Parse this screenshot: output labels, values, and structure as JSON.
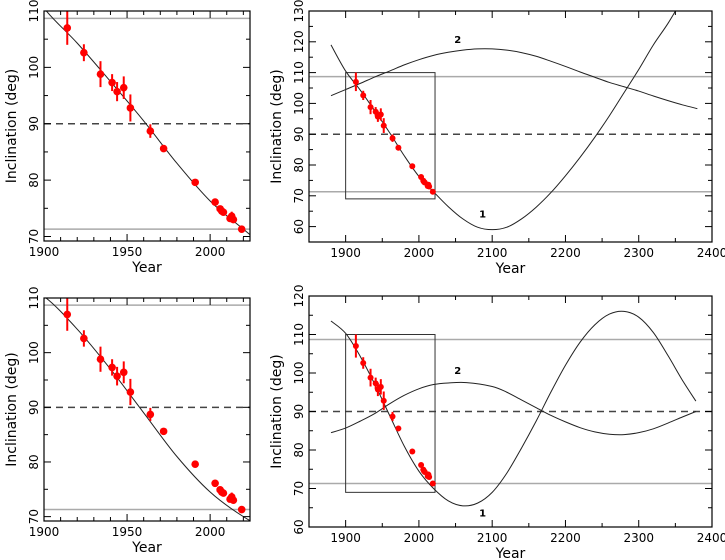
{
  "colors": {
    "points": "#ff0000",
    "curve": "#222222",
    "reference": "#aaaaaa",
    "dashed": "#444444",
    "frame": "#000000"
  },
  "observations": {
    "year": [
      1914,
      1924,
      1934,
      1941,
      1944,
      1948,
      1952,
      1964,
      1972,
      1991,
      2003,
      2006,
      2007,
      2008,
      2012,
      2013,
      2014,
      2019
    ],
    "incl": [
      107.0,
      102.6,
      98.8,
      97.3,
      95.7,
      96.4,
      92.8,
      88.7,
      85.6,
      79.6,
      76.1,
      74.9,
      74.5,
      74.3,
      73.2,
      73.6,
      73.0,
      71.3
    ],
    "err": [
      3.0,
      1.5,
      2.3,
      1.5,
      1.7,
      2.0,
      2.4,
      1.2,
      0.4,
      0.3,
      0.3,
      0.5,
      0.3,
      0.3,
      0.5,
      0.8,
      0.5,
      0.3
    ]
  },
  "model_a": {
    "curve1": {
      "x": [
        1880,
        1900,
        1920,
        1940,
        1960,
        1980,
        2000,
        2020,
        2040,
        2060,
        2080,
        2100,
        2120,
        2140,
        2160,
        2180,
        2200,
        2220,
        2240,
        2260,
        2280,
        2300,
        2320,
        2340,
        2360
      ],
      "y": [
        119,
        110.5,
        104.3,
        97.5,
        90.5,
        83,
        76.3,
        71.3,
        66.5,
        62.5,
        59.8,
        59,
        59.8,
        62.5,
        66.3,
        71,
        76.5,
        82.5,
        89,
        96,
        103.5,
        111,
        119,
        126,
        134
      ]
    },
    "curve2": {
      "x": [
        1880,
        1900,
        1920,
        1940,
        1960,
        1980,
        2000,
        2020,
        2040,
        2060,
        2080,
        2100,
        2120,
        2140,
        2160,
        2180,
        2200,
        2220,
        2240,
        2260,
        2280,
        2300,
        2320,
        2340,
        2360,
        2380
      ],
      "y": [
        102.5,
        104.5,
        106.5,
        108.6,
        110.5,
        112.5,
        114.2,
        115.6,
        116.6,
        117.3,
        117.7,
        117.7,
        117.3,
        116.5,
        115.3,
        113.7,
        112,
        110.2,
        108.5,
        106.8,
        105.4,
        104,
        102.4,
        100.9,
        99.5,
        98.3
      ]
    }
  },
  "model_b": {
    "curve1": {
      "x": [
        1880,
        1900,
        1920,
        1940,
        1960,
        1980,
        2000,
        2020,
        2040,
        2060,
        2080,
        2100,
        2120,
        2140,
        2160,
        2180,
        2200,
        2220,
        2240,
        2260,
        2280,
        2300,
        2320,
        2340,
        2360,
        2378
      ],
      "y": [
        113.5,
        110.3,
        104.3,
        97,
        89,
        81,
        74.5,
        70,
        66.8,
        65.5,
        66.2,
        69,
        74,
        80.5,
        87.5,
        95,
        102,
        108,
        112.5,
        115.3,
        116,
        114.5,
        110.5,
        104.5,
        98,
        92.7
      ]
    },
    "curve2": {
      "x": [
        1880,
        1900,
        1920,
        1940,
        1960,
        1980,
        2000,
        2020,
        2040,
        2065,
        2100,
        2120,
        2140,
        2160,
        2180,
        2200,
        2220,
        2240,
        2260,
        2280,
        2300,
        2320,
        2340,
        2360,
        2378
      ],
      "y": [
        84.5,
        85.7,
        87.5,
        89.5,
        92,
        94.2,
        95.9,
        97,
        97.4,
        97.5,
        96.5,
        95,
        93,
        91,
        89,
        87.3,
        85.8,
        84.7,
        84.1,
        84,
        84.5,
        85.5,
        87,
        88.6,
        90
      ]
    }
  },
  "chart_data": [
    {
      "type": "scatter",
      "panel": "top-left",
      "xlabel": "Year",
      "ylabel": "Inclination  (deg)",
      "xlim": [
        1900,
        2024
      ],
      "ylim": [
        69.2,
        110
      ],
      "xticks": [
        "1900",
        "1950",
        "2000"
      ],
      "yticks": [
        "70",
        "80",
        "90",
        "100",
        "110"
      ],
      "model": "model_a",
      "show_curve2": false,
      "hlines": {
        "reference": [
          108.7,
          71.3
        ],
        "dashed": [
          90
        ]
      }
    },
    {
      "type": "line",
      "panel": "top-right",
      "xlabel": "Year",
      "ylabel": "Inclination  (deg)",
      "xlim": [
        1850,
        2400
      ],
      "ylim": [
        55,
        130
      ],
      "xticks": [
        "1900",
        "2000",
        "2100",
        "2200",
        "2300",
        "2400"
      ],
      "yticks": [
        "60",
        "70",
        "80",
        "90",
        "100",
        "110",
        "120",
        "130"
      ],
      "model": "model_a",
      "show_curve2": true,
      "curve_labels": [
        {
          "text": "1",
          "x": 2087,
          "y": 64.2
        },
        {
          "text": "2",
          "x": 2053,
          "y": 120.9
        }
      ],
      "inset_box": {
        "x": [
          1900,
          2022
        ],
        "y": [
          69,
          110
        ]
      },
      "hlines": {
        "reference": [
          108.7,
          71.3
        ],
        "dashed": [
          90
        ]
      }
    },
    {
      "type": "scatter",
      "panel": "bottom-left",
      "xlabel": "Year",
      "ylabel": "Inclination  (deg)",
      "xlim": [
        1900,
        2024
      ],
      "ylim": [
        69.2,
        110
      ],
      "xticks": [
        "1900",
        "1950",
        "2000"
      ],
      "yticks": [
        "70",
        "80",
        "90",
        "100",
        "110"
      ],
      "model": "model_b",
      "show_curve2": false,
      "hlines": {
        "reference": [
          108.7,
          71.3
        ],
        "dashed": [
          90
        ]
      }
    },
    {
      "type": "line",
      "panel": "bottom-right",
      "xlabel": "Year",
      "ylabel": "Inclination  (deg)",
      "xlim": [
        1850,
        2400
      ],
      "ylim": [
        60,
        120
      ],
      "xticks": [
        "1900",
        "2000",
        "2100",
        "2200",
        "2300",
        "2400"
      ],
      "yticks": [
        "60",
        "70",
        "80",
        "90",
        "100",
        "110",
        "120"
      ],
      "model": "model_b",
      "show_curve2": true,
      "curve_labels": [
        {
          "text": "1",
          "x": 2087,
          "y": 63.8
        },
        {
          "text": "2",
          "x": 2053,
          "y": 100.8
        }
      ],
      "inset_box": {
        "x": [
          1900,
          2022
        ],
        "y": [
          69,
          110
        ]
      },
      "hlines": {
        "reference": [
          108.7,
          71.3
        ],
        "dashed": [
          90
        ]
      }
    }
  ]
}
